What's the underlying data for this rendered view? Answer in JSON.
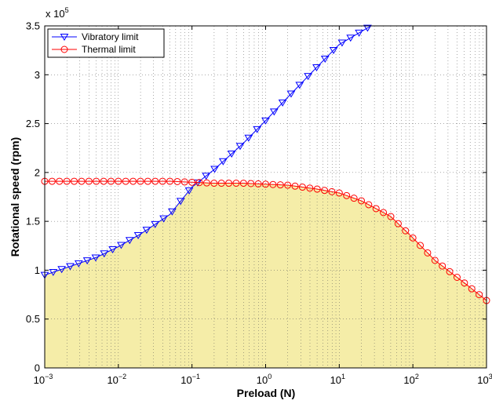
{
  "chart_data": {
    "type": "line",
    "title": "",
    "xlabel": "Preload (N)",
    "ylabel": "Rotational speed (rpm)",
    "x_scale": "log",
    "xlim": [
      0.001,
      1000
    ],
    "ylim": [
      0,
      350000
    ],
    "y_multiplier_label": "x 10",
    "y_multiplier_exp": "5",
    "grid": "on (dotted, major and minor)",
    "legend_position": "top-left",
    "x_tick_labels": [
      {
        "base": "10",
        "exp": "−3"
      },
      {
        "base": "10",
        "exp": "−2"
      },
      {
        "base": "10",
        "exp": "−1"
      },
      {
        "base": "10",
        "exp": "0"
      },
      {
        "base": "10",
        "exp": "1"
      },
      {
        "base": "10",
        "exp": "2"
      },
      {
        "base": "10",
        "exp": "3"
      }
    ],
    "y_tick_labels": [
      "0",
      "0.5",
      "1",
      "1.5",
      "2",
      "2.5",
      "3",
      "3.5"
    ],
    "fill_region": {
      "description": "area under the minimum of the two limits",
      "color": "#f5eda8"
    },
    "series": [
      {
        "name": "Vibratory limit",
        "color": "#0000ff",
        "marker": "triangle-down",
        "points": [
          [
            0.001,
            95000
          ],
          [
            0.005,
            113000
          ],
          [
            0.01,
            124000
          ],
          [
            0.02,
            137000
          ],
          [
            0.05,
            157000
          ],
          [
            0.1,
            185000
          ],
          [
            0.2,
            203000
          ],
          [
            0.5,
            230000
          ],
          [
            1,
            253000
          ],
          [
            2,
            277000
          ],
          [
            5,
            308000
          ],
          [
            10,
            331000
          ],
          [
            27,
            350000
          ]
        ]
      },
      {
        "name": "Thermal limit",
        "color": "#ff0000",
        "marker": "circle",
        "points": [
          [
            0.001,
            191000
          ],
          [
            0.01,
            191000
          ],
          [
            0.05,
            191000
          ],
          [
            0.1,
            190000
          ],
          [
            0.2,
            189000
          ],
          [
            0.5,
            189000
          ],
          [
            1,
            188000
          ],
          [
            2,
            187000
          ],
          [
            5,
            183000
          ],
          [
            10,
            179000
          ],
          [
            20,
            171000
          ],
          [
            50,
            155000
          ],
          [
            100,
            133000
          ],
          [
            200,
            110000
          ],
          [
            500,
            87000
          ],
          [
            1000,
            69000
          ]
        ]
      }
    ]
  }
}
